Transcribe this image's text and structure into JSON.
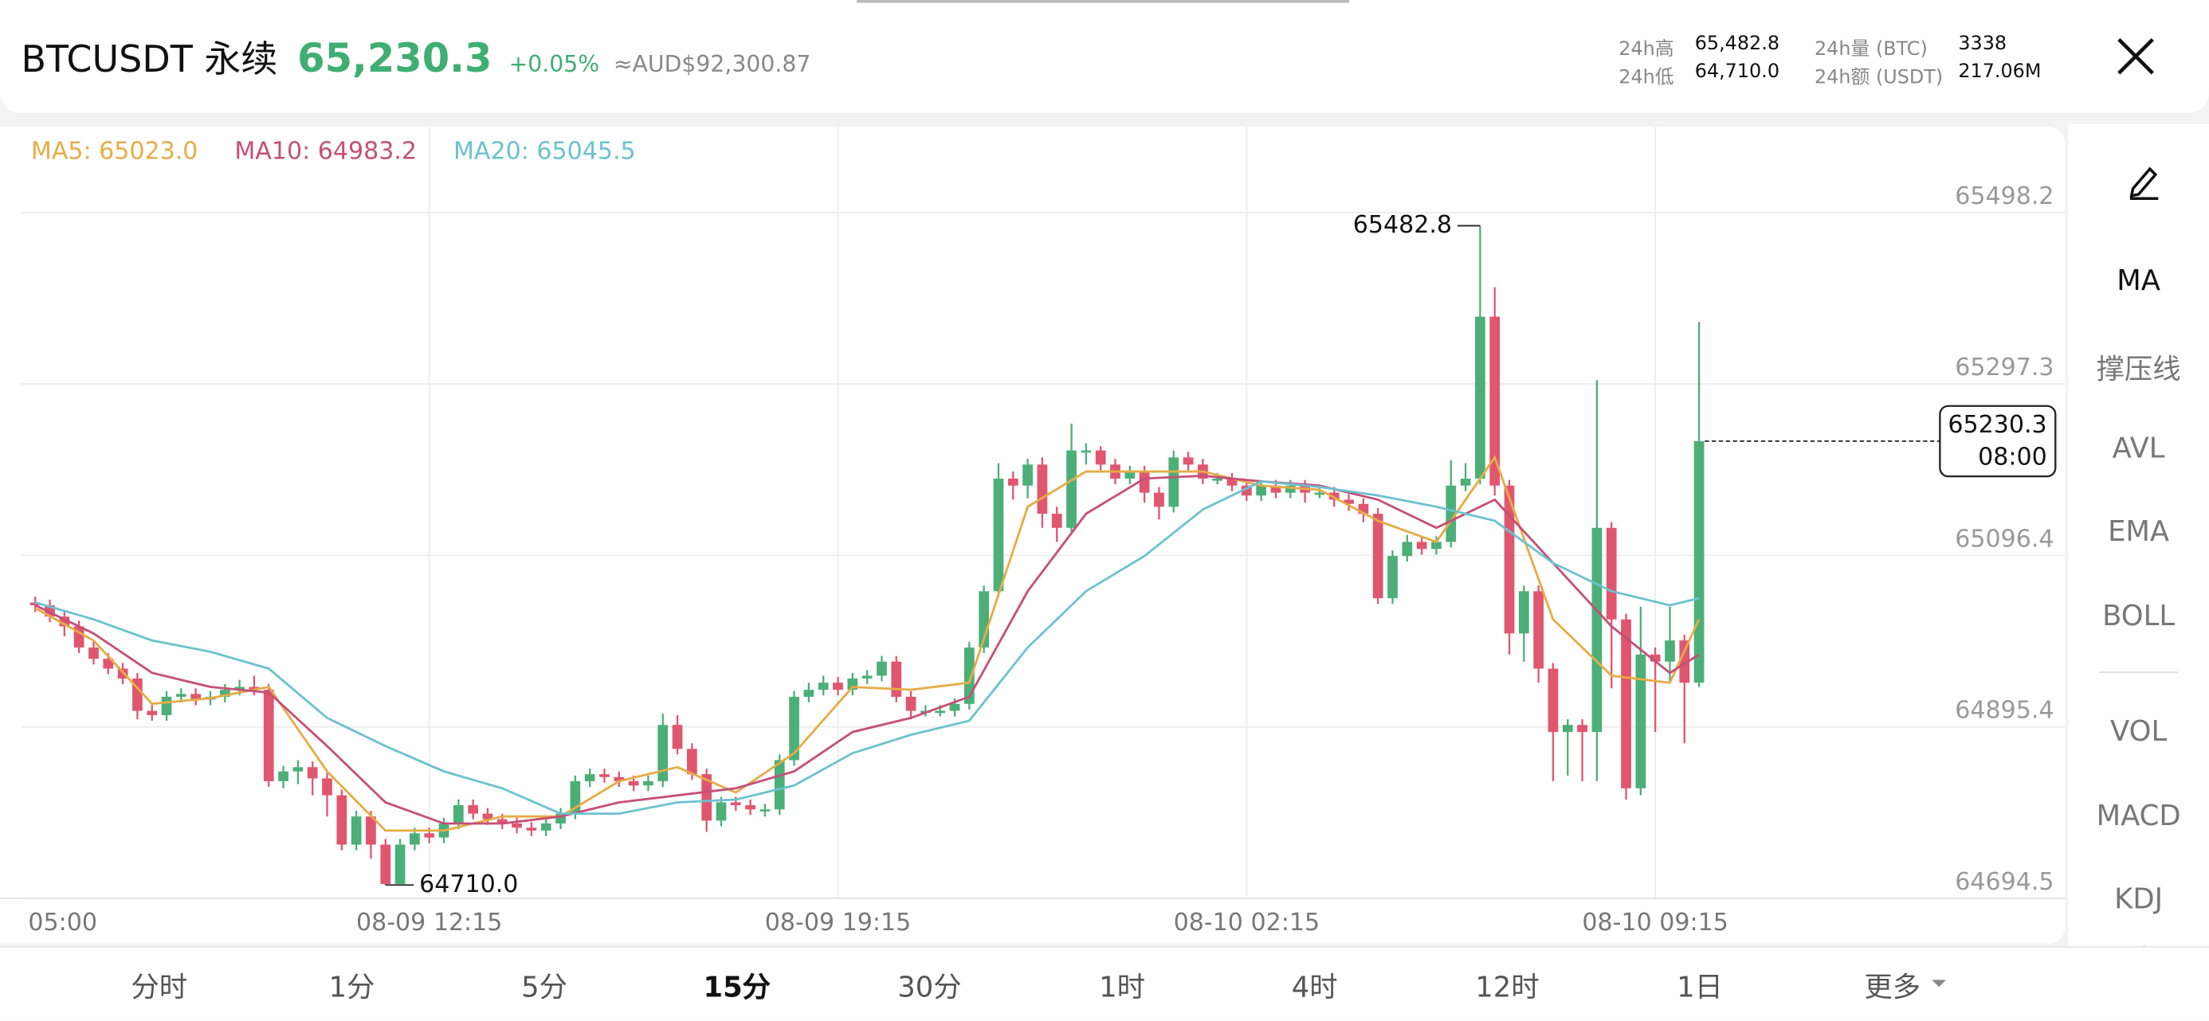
{
  "header": {
    "symbol": "BTCUSDT 永续",
    "price": "65,230.3",
    "change": "+0.05%",
    "converted": "≈AUD$92,300.87",
    "stats": [
      {
        "label": "24h高",
        "value": "65,482.8"
      },
      {
        "label": "24h低",
        "value": "64,710.0"
      },
      {
        "label": "24h量 (BTC)",
        "value": "3338"
      },
      {
        "label": "24h额 (USDT)",
        "value": "217.06M"
      }
    ]
  },
  "chart_data": {
    "type": "candlestick",
    "up_color": "#4caf78",
    "down_color": "#e0566f",
    "grid": true,
    "ylim": [
      64694.5,
      65498.2
    ],
    "yticks": [
      65498.2,
      65297.3,
      65096.4,
      64895.4,
      64694.5
    ],
    "xticks": [
      {
        "value": -2,
        "label": "05:00"
      },
      {
        "value": 27,
        "label": "08-09 12:15"
      },
      {
        "value": 55,
        "label": "08-09 19:15"
      },
      {
        "value": 83,
        "label": "08-10 02:15"
      },
      {
        "value": 111,
        "label": "08-10 09:15"
      }
    ],
    "open": [
      65041.2,
      65037.9,
      65024.7,
      65013.2,
      64988.4,
      64975.2,
      64963.7,
      64952.1,
      64914.2,
      64909.2,
      64930.7,
      64934.0,
      64927.4,
      64930.7,
      64938.9,
      64942.2,
      64938.9,
      64831.7,
      64843.2,
      64848.2,
      64835.0,
      64815.2,
      64757.4,
      64790.4,
      64757.4,
      64711.2,
      64757.4,
      64770.6,
      64765.7,
      64782.2,
      64803.6,
      64793.7,
      64787.1,
      64782.2,
      64777.2,
      64773.9,
      64782.2,
      64793.7,
      64831.7,
      64839.9,
      64836.6,
      64831.7,
      64826.7,
      64831.7,
      64897.7,
      64869.6,
      64839.9,
      64785.5,
      64806.9,
      64803.6,
      64798.7,
      64798.7,
      64856.4,
      64930.7,
      64938.9,
      64947.2,
      64938.9,
      64952.1,
      64955.4,
      64971.9,
      64930.7,
      64914.2,
      64914.2,
      64914.2,
      64922.4,
      64988.4,
      65054.4,
      65186.4,
      65178.2,
      65202.9,
      65145.2,
      65128.7,
      65219.4,
      65219.4,
      65202.9,
      65186.4,
      65194.7,
      65169.9,
      65153.4,
      65211.2,
      65202.9,
      65186.4,
      65186.4,
      65178.2,
      65166.6,
      65178.2,
      65169.9,
      65178.2,
      65169.9,
      65169.9,
      65161.7,
      65156.7,
      65145.2,
      65046.2,
      65095.7,
      65112.2,
      65103.9,
      65112.2,
      65178.2,
      65186.4,
      65376.2,
      65178.2,
      65004.9,
      65054.4,
      64963.7,
      64889.4,
      64897.7,
      64889.4,
      65128.7,
      65021.4,
      64823.4,
      64980.2,
      64971.9,
      64996.7,
      64947.2
    ],
    "high": [
      65048.0,
      65044.5,
      65031.3,
      65019.8,
      64995.0,
      64981.8,
      64970.3,
      64958.7,
      64920.8,
      64937.3,
      64940.6,
      64940.6,
      64937.3,
      64945.5,
      64950.5,
      64955.4,
      64945.5,
      64849.8,
      64856.4,
      64854.8,
      64841.6,
      64821.8,
      64797.0,
      64797.0,
      64764.0,
      64764.0,
      64777.2,
      64777.2,
      64788.8,
      64810.2,
      64810.2,
      64800.3,
      64793.7,
      64788.8,
      64783.8,
      64788.8,
      64800.3,
      64838.3,
      64846.5,
      64846.5,
      64843.2,
      64838.3,
      64838.3,
      64910.9,
      64909.2,
      64876.2,
      64846.5,
      64813.5,
      64813.5,
      64810.2,
      64805.3,
      64863.0,
      64937.3,
      64947.2,
      64955.4,
      64953.8,
      64958.7,
      64962.0,
      64978.5,
      64978.5,
      64937.3,
      64920.8,
      64920.8,
      64929.0,
      64995.0,
      65061.0,
      65204.5,
      65194.7,
      65209.5,
      65211.2,
      65153.4,
      65250.8,
      65227.7,
      65224.4,
      65209.5,
      65201.3,
      65201.3,
      65176.5,
      65219.4,
      65217.8,
      65209.5,
      65193.0,
      65193.0,
      65184.8,
      65184.8,
      65184.8,
      65184.8,
      65184.8,
      65176.5,
      65176.5,
      65168.3,
      65163.3,
      65151.8,
      65102.3,
      65120.4,
      65118.8,
      65118.8,
      65207.9,
      65204.5,
      65482.8,
      65410.8,
      65184.8,
      65061.0,
      65061.0,
      64970.3,
      64904.3,
      64904.3,
      65301.9,
      65135.3,
      65028.0,
      65036.2,
      64988.4,
      65036.2,
      65003.3,
      65370.0
    ],
    "low": [
      65030.0,
      65018.1,
      65001.6,
      64981.8,
      64968.6,
      64957.1,
      64945.5,
      64904.3,
      64902.6,
      64902.6,
      64924.1,
      64920.8,
      64920.8,
      64924.1,
      64932.3,
      64932.3,
      64825.1,
      64823.4,
      64828.4,
      64815.2,
      64790.4,
      64750.8,
      64750.8,
      64740.9,
      64710.0,
      64711.2,
      64750.8,
      64759.1,
      64759.1,
      64775.6,
      64787.1,
      64780.5,
      64775.6,
      64770.6,
      64767.3,
      64767.3,
      64775.6,
      64787.1,
      64825.1,
      64830.0,
      64825.1,
      64820.1,
      64820.1,
      64825.1,
      64863.0,
      64833.3,
      64772.3,
      64778.9,
      64797.0,
      64792.1,
      64790.4,
      64792.1,
      64849.8,
      64924.1,
      64932.3,
      64932.3,
      64932.3,
      64945.5,
      64948.8,
      64924.1,
      64904.3,
      64907.6,
      64907.6,
      64907.6,
      64915.8,
      64981.8,
      65047.8,
      65161.7,
      65163.3,
      65128.7,
      65112.2,
      65122.1,
      65202.9,
      65196.3,
      65179.8,
      65179.8,
      65158.3,
      65138.6,
      65146.8,
      65196.3,
      65179.8,
      65179.8,
      65171.6,
      65160.0,
      65160.0,
      65163.3,
      65163.3,
      65158.3,
      65163.3,
      65153.4,
      65148.5,
      65135.3,
      65039.6,
      65039.6,
      65089.1,
      65097.3,
      65097.3,
      65105.6,
      65171.6,
      65179.8,
      65166.6,
      64980.2,
      64971.9,
      64947.2,
      64831.7,
      64838.3,
      64831.7,
      64831.7,
      64940.6,
      64810.2,
      64815.2,
      64889.4,
      64947.2,
      64876.2,
      64942.0
    ],
    "close": [
      65037.9,
      65024.7,
      65013.2,
      64988.4,
      64975.2,
      64963.7,
      64952.1,
      64914.2,
      64909.2,
      64930.7,
      64934.0,
      64927.4,
      64930.7,
      64938.9,
      64942.2,
      64938.9,
      64831.7,
      64843.2,
      64848.2,
      64835.0,
      64815.2,
      64757.4,
      64790.4,
      64757.4,
      64711.2,
      64757.4,
      64770.6,
      64765.7,
      64782.2,
      64803.6,
      64793.7,
      64787.1,
      64782.2,
      64777.2,
      64773.9,
      64782.2,
      64793.7,
      64831.7,
      64839.9,
      64836.6,
      64831.7,
      64826.7,
      64831.7,
      64897.7,
      64869.6,
      64839.9,
      64785.5,
      64806.9,
      64803.6,
      64798.7,
      64798.7,
      64856.4,
      64930.7,
      64938.9,
      64947.2,
      64938.9,
      64952.1,
      64955.4,
      64971.9,
      64930.7,
      64914.2,
      64914.2,
      64914.2,
      64922.4,
      64988.4,
      65054.4,
      65186.4,
      65178.2,
      65202.9,
      65145.2,
      65128.7,
      65219.4,
      65219.4,
      65202.9,
      65186.4,
      65194.7,
      65169.9,
      65153.4,
      65211.2,
      65202.9,
      65186.4,
      65186.4,
      65178.2,
      65166.6,
      65178.2,
      65169.9,
      65178.2,
      65169.9,
      65169.9,
      65161.7,
      65156.7,
      65145.2,
      65046.2,
      65095.7,
      65112.2,
      65103.9,
      65112.2,
      65178.2,
      65186.4,
      65376.2,
      65178.2,
      65004.9,
      65054.4,
      64963.7,
      64889.4,
      64897.7,
      64889.4,
      65128.7,
      65021.4,
      64823.4,
      64980.2,
      64971.9,
      64996.7,
      64947.2,
      65230.3
    ],
    "ma_index": [
      0,
      4,
      8,
      12,
      16,
      20,
      24,
      28,
      32,
      36,
      40,
      44,
      48,
      52,
      56,
      60,
      64,
      68,
      72,
      76,
      80,
      84,
      88,
      92,
      96,
      100,
      104,
      108,
      112,
      114
    ],
    "series": [
      {
        "label": "MA5: 65023.0",
        "color": "#e6ac45",
        "values": [
          65034.6,
          64996.7,
          64922.4,
          64929.0,
          64942.2,
          64843.2,
          64773.9,
          64773.9,
          64790.4,
          64790.4,
          64831.7,
          64848.2,
          64818.4,
          64864.7,
          64942.2,
          64938.9,
          64947.2,
          65153.4,
          65194.7,
          65194.7,
          65194.7,
          65178.2,
          65173.2,
          65136.9,
          65112.2,
          65211.2,
          65021.4,
          64955.4,
          64947.2,
          65021.4
        ]
      },
      {
        "label": "MA10: 64983.2",
        "color": "#c64f78",
        "values": [
          65037.9,
          65004.9,
          64958.7,
          64942.2,
          64935.6,
          64872.9,
          64806.9,
          64782.2,
          64782.2,
          64790.4,
          64806.9,
          64815.2,
          64823.4,
          64843.2,
          64889.4,
          64905.9,
          64930.7,
          65054.4,
          65145.2,
          65186.4,
          65189.7,
          65183.1,
          65178.2,
          65161.7,
          65128.7,
          65161.7,
          65087.4,
          65013.2,
          64958.7,
          64980.2
        ]
      },
      {
        "label": "MA20: 65045.5",
        "color": "#6cc2cf",
        "values": [
          65041.2,
          65021.4,
          64996.7,
          64983.5,
          64963.7,
          64905.9,
          64872.9,
          64843.2,
          64823.4,
          64793.7,
          64793.7,
          64806.9,
          64810.2,
          64826.7,
          64864.7,
          64886.1,
          64902.6,
          64988.4,
          65054.4,
          65095.7,
          65150.1,
          65183.1,
          65176.5,
          65166.6,
          65153.4,
          65136.9,
          65087.4,
          65054.4,
          65037.9,
          65046.2
        ]
      }
    ],
    "max_marker": 65482.8,
    "min_marker": {
      "value": 64710,
      "label": "64710.0"
    },
    "last_price": 65230.3,
    "countdown": "08:00"
  },
  "indicators": [
    "MA",
    "撑压线",
    "AVL",
    "EMA",
    "BOLL",
    "VOL",
    "MACD",
    "KDJ"
  ],
  "intervals": [
    "分时",
    "1分",
    "5分",
    "15分",
    "30分",
    "1时",
    "4时",
    "12时",
    "1日",
    "更多"
  ],
  "selected_interval": 3
}
